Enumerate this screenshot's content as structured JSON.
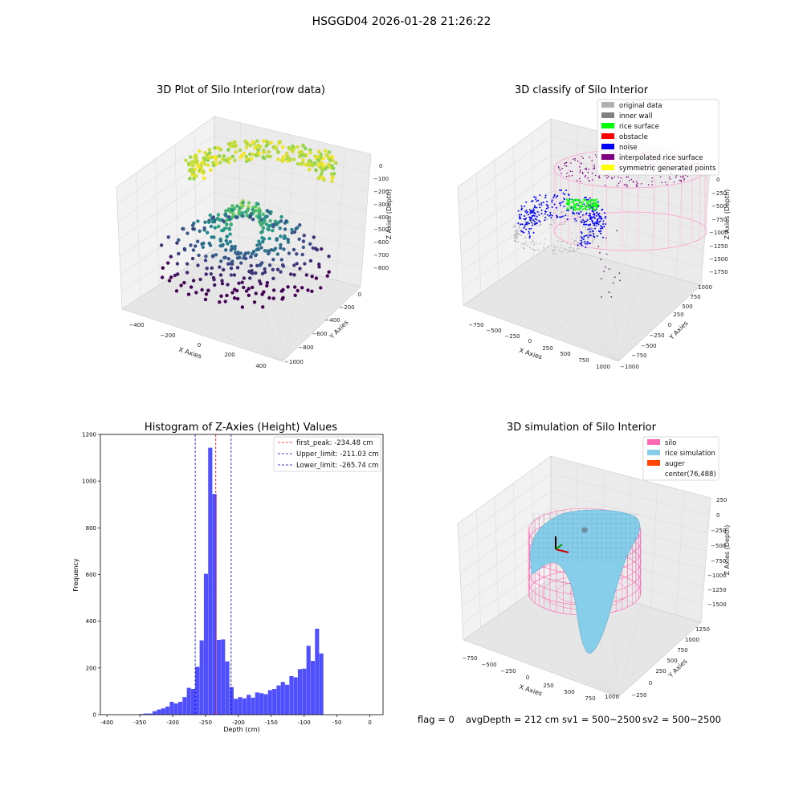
{
  "suptitle": "HSGGD04 2026-01-28 21:26:22",
  "footer": {
    "flag": "flag = 0",
    "avg": "avgDepth = 212 cm",
    "sv1": "sv1 = 500~2500",
    "sv2": "sv2 = 500~2500"
  },
  "colors": {
    "histogram_bar": "#4f4fff",
    "peak_line": "#ff0000",
    "limit_line": "#0000cc",
    "silo_wire": "#ff69b4",
    "rice_surface": "#87ceeb",
    "rice_green": "#00ff00",
    "noise_blue": "#0000ff",
    "original_gray": "#b0b0b0"
  },
  "chart_data": [
    {
      "type": "scatter",
      "subtype": "3d",
      "title": "3D Plot of Silo Interior(row data)",
      "xlabel": "X Axies",
      "ylabel": "Y Axies",
      "zlabel": "Z Axies (Depth)",
      "x_ticks": [
        "−400",
        "−200",
        "0",
        "200",
        "400"
      ],
      "y_ticks": [
        "0",
        "−200",
        "−400",
        "−600",
        "−800",
        "−1000"
      ],
      "z_ticks": [
        "0",
        "−100",
        "−200",
        "−300",
        "−400",
        "−500",
        "−600",
        "−700",
        "−800"
      ],
      "colormap": "viridis (colored by depth)"
    },
    {
      "type": "scatter",
      "subtype": "3d",
      "title": "3D classify of Silo Interior",
      "xlabel": "X Axies",
      "ylabel": "Y Axies",
      "zlabel": "Z Axies (Depth)",
      "x_ticks": [
        "−750",
        "−500",
        "−250",
        "0",
        "250",
        "500",
        "750",
        "1000"
      ],
      "y_ticks": [
        "1000",
        "750",
        "500",
        "250",
        "0",
        "−250",
        "−500",
        "−750",
        "−1000"
      ],
      "z_ticks": [
        "0",
        "−250",
        "−500",
        "−750",
        "−1000",
        "−1250",
        "−1500",
        "−1750"
      ],
      "legend": [
        {
          "label": "original data",
          "color": "#b0b0b0"
        },
        {
          "label": "inner wall",
          "color": "#808080"
        },
        {
          "label": "rice surface",
          "color": "#00ff00"
        },
        {
          "label": "obstacle",
          "color": "#ff0000"
        },
        {
          "label": "noise",
          "color": "#0000ff"
        },
        {
          "label": "interpolated rice surface",
          "color": "#800080"
        },
        {
          "label": "symmetric generated points",
          "color": "#ffff00"
        }
      ],
      "legend_position": "top-right"
    },
    {
      "type": "bar",
      "subtype": "histogram",
      "title": "Histogram of Z-Axies (Height) Values",
      "xlabel": "Depth (cm)",
      "ylabel": "Frequency",
      "xlim": [
        -410,
        20
      ],
      "ylim": [
        0,
        1200
      ],
      "bin_width": 6.5,
      "x_ticks": [
        -400,
        -350,
        -300,
        -250,
        -200,
        -150,
        -100,
        -50,
        0
      ],
      "y_ticks": [
        0,
        200,
        400,
        600,
        800,
        1000,
        1200
      ],
      "bins": [
        {
          "x": -350,
          "y": 3
        },
        {
          "x": -343.5,
          "y": 5
        },
        {
          "x": -337,
          "y": 5
        },
        {
          "x": -330.5,
          "y": 15
        },
        {
          "x": -324,
          "y": 22
        },
        {
          "x": -317.5,
          "y": 27
        },
        {
          "x": -311,
          "y": 35
        },
        {
          "x": -304.5,
          "y": 55
        },
        {
          "x": -298,
          "y": 48
        },
        {
          "x": -291.5,
          "y": 55
        },
        {
          "x": -285,
          "y": 75
        },
        {
          "x": -278.5,
          "y": 115
        },
        {
          "x": -272,
          "y": 110
        },
        {
          "x": -265.5,
          "y": 205
        },
        {
          "x": -259,
          "y": 318
        },
        {
          "x": -252.5,
          "y": 603
        },
        {
          "x": -246,
          "y": 1143
        },
        {
          "x": -239.5,
          "y": 945
        },
        {
          "x": -233,
          "y": 320
        },
        {
          "x": -226.5,
          "y": 322
        },
        {
          "x": -220,
          "y": 228
        },
        {
          "x": -213.5,
          "y": 118
        },
        {
          "x": -207,
          "y": 68
        },
        {
          "x": -200.5,
          "y": 75
        },
        {
          "x": -194,
          "y": 70
        },
        {
          "x": -187.5,
          "y": 85
        },
        {
          "x": -181,
          "y": 73
        },
        {
          "x": -174.5,
          "y": 95
        },
        {
          "x": -168,
          "y": 92
        },
        {
          "x": -161.5,
          "y": 88
        },
        {
          "x": -155,
          "y": 105
        },
        {
          "x": -148.5,
          "y": 110
        },
        {
          "x": -142,
          "y": 125
        },
        {
          "x": -135.5,
          "y": 140
        },
        {
          "x": -129,
          "y": 128
        },
        {
          "x": -122.5,
          "y": 165
        },
        {
          "x": -116,
          "y": 160
        },
        {
          "x": -109.5,
          "y": 195
        },
        {
          "x": -103,
          "y": 197
        },
        {
          "x": -96.5,
          "y": 295
        },
        {
          "x": -90,
          "y": 230
        },
        {
          "x": -83.5,
          "y": 368
        },
        {
          "x": -77,
          "y": 262
        }
      ],
      "vlines": [
        {
          "label": "first_peak: -234.48 cm",
          "x": -234.48,
          "color": "#ff0000"
        },
        {
          "label": "Upper_limit: -211.03 cm",
          "x": -211.03,
          "color": "#0000cc"
        },
        {
          "label": "Lower_limit: -265.74 cm",
          "x": -265.74,
          "color": "#0000cc"
        }
      ],
      "legend_position": "top-right"
    },
    {
      "type": "surface",
      "subtype": "3d",
      "title": "3D simulation of Silo Interior",
      "xlabel": "X Axies",
      "ylabel": "Y Axies",
      "zlabel": "Z Axies (Depth)",
      "x_ticks": [
        "−750",
        "−500",
        "−250",
        "0",
        "250",
        "500",
        "750",
        "1000"
      ],
      "y_ticks": [
        "1250",
        "1000",
        "750",
        "500",
        "250",
        "0",
        "−250"
      ],
      "z_ticks": [
        "250",
        "0",
        "−250",
        "−500",
        "−750",
        "−1000",
        "−1250",
        "−1500"
      ],
      "legend": [
        {
          "label": "silo",
          "color": "#ff69b4"
        },
        {
          "label": "rice simulation",
          "color": "#87ceeb"
        },
        {
          "label": "auger",
          "color": "#ff4500"
        },
        {
          "label": "center(76,488)",
          "color": ""
        }
      ],
      "legend_position": "top-right"
    }
  ]
}
